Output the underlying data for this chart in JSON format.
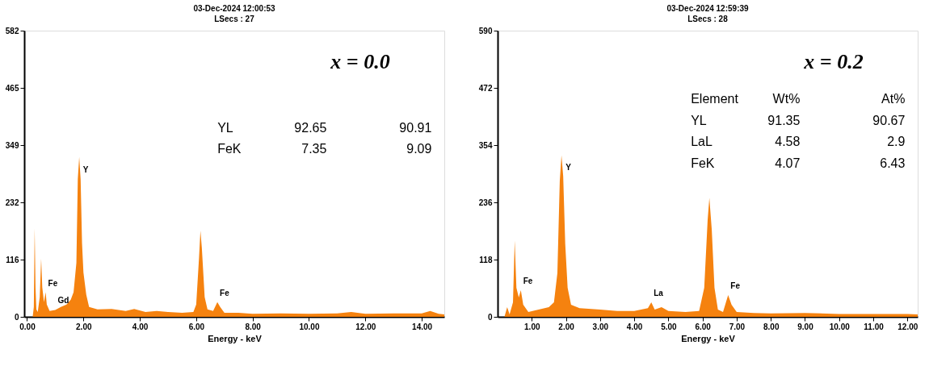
{
  "chart_data": [
    {
      "type": "area",
      "title": "03-Dec-2024 12:00:53",
      "subtitle": "LSecs : 27",
      "xlabel": "Energy - keV",
      "color": "#f5820f",
      "x": [
        0.2,
        0.24,
        0.27,
        0.3,
        0.33,
        0.38,
        0.45,
        0.5,
        0.54,
        0.6,
        0.66,
        0.7,
        0.8,
        1.0,
        1.2,
        1.4,
        1.55,
        1.65,
        1.75,
        1.8,
        1.85,
        1.9,
        1.95,
        2.0,
        2.1,
        2.2,
        2.5,
        3.0,
        3.5,
        3.8,
        4.2,
        4.6,
        5.0,
        5.5,
        5.9,
        6.0,
        6.1,
        6.15,
        6.2,
        6.3,
        6.4,
        6.6,
        6.75,
        6.85,
        7.0,
        7.5,
        8.0,
        9.0,
        10.0,
        11.0,
        11.5,
        12.0,
        13.0,
        14.0,
        14.3,
        14.6,
        14.8
      ],
      "values": [
        0,
        20,
        180,
        60,
        15,
        10,
        40,
        118,
        60,
        30,
        50,
        25,
        12,
        14,
        20,
        25,
        35,
        50,
        110,
        280,
        325,
        280,
        150,
        90,
        45,
        20,
        15,
        16,
        12,
        16,
        10,
        12,
        10,
        8,
        10,
        25,
        120,
        175,
        140,
        40,
        15,
        12,
        30,
        20,
        8,
        8,
        6,
        7,
        6,
        7,
        10,
        6,
        7,
        7,
        12,
        6,
        5
      ],
      "xlim": [
        -0.1,
        14.8
      ],
      "xticks": [
        {
          "value": 0,
          "label": "0.00"
        },
        {
          "value": 2,
          "label": "2.00"
        },
        {
          "value": 4,
          "label": "4.00"
        },
        {
          "value": 6,
          "label": "6.00"
        },
        {
          "value": 8,
          "label": "8.00"
        },
        {
          "value": 10,
          "label": "10.00"
        },
        {
          "value": 12,
          "label": "12.00"
        },
        {
          "value": 14,
          "label": "14.00"
        }
      ],
      "ylim": [
        0,
        582
      ],
      "yticks": [
        0,
        116,
        232,
        349,
        465,
        582
      ],
      "annotations": [
        "x = 0.0",
        "YL",
        "92.65",
        "90.91",
        "FeK",
        "7.35",
        "9.09",
        {
          "text": "Y",
          "x": 1.9,
          "y": 280
        },
        {
          "text": "Fe",
          "x": 0.66,
          "y": 50
        },
        {
          "text": "Gd",
          "x": 1.0,
          "y": 14
        },
        {
          "text": "Fe",
          "x": 6.75,
          "y": 30
        }
      ]
    },
    {
      "type": "area",
      "title": "03-Dec-2024 12:59:39",
      "subtitle": "LSecs : 28",
      "xlabel": "Energy - keV",
      "color": "#f5820f",
      "x": [
        0.2,
        0.28,
        0.35,
        0.45,
        0.5,
        0.55,
        0.62,
        0.68,
        0.75,
        0.9,
        1.2,
        1.5,
        1.65,
        1.75,
        1.82,
        1.87,
        1.92,
        1.98,
        2.05,
        2.15,
        2.4,
        3.0,
        3.5,
        4.0,
        4.4,
        4.5,
        4.6,
        4.8,
        5.0,
        5.5,
        5.9,
        6.05,
        6.15,
        6.2,
        6.27,
        6.35,
        6.45,
        6.6,
        6.75,
        6.85,
        7.0,
        7.5,
        8.0,
        9.0,
        10.0,
        11.0,
        12.0,
        12.3
      ],
      "values": [
        0,
        20,
        5,
        30,
        157,
        60,
        40,
        55,
        25,
        10,
        15,
        20,
        30,
        90,
        280,
        333,
        290,
        150,
        60,
        25,
        18,
        15,
        12,
        12,
        18,
        30,
        15,
        20,
        12,
        10,
        12,
        60,
        200,
        245,
        180,
        60,
        15,
        10,
        45,
        25,
        10,
        8,
        7,
        8,
        6,
        6,
        6,
        5
      ],
      "xlim": [
        0,
        12.3
      ],
      "xticks": [
        {
          "value": 1,
          "label": "1.00"
        },
        {
          "value": 2,
          "label": "2.00"
        },
        {
          "value": 3,
          "label": "3.00"
        },
        {
          "value": 4,
          "label": "4.00"
        },
        {
          "value": 5,
          "label": "5.00"
        },
        {
          "value": 6,
          "label": "6.00"
        },
        {
          "value": 7,
          "label": "7.00"
        },
        {
          "value": 8,
          "label": "8.00"
        },
        {
          "value": 9,
          "label": "9.00"
        },
        {
          "value": 10,
          "label": "10.00"
        },
        {
          "value": 11,
          "label": "11.00"
        },
        {
          "value": 12,
          "label": "12.00"
        }
      ],
      "ylim": [
        0,
        590
      ],
      "yticks": [
        0,
        118,
        236,
        354,
        472,
        590
      ],
      "annotations": [
        "x = 0.2",
        "Element",
        "Wt%",
        "At%",
        "YL",
        "91.35",
        "90.67",
        "LaL",
        "4.58",
        "2.9",
        "FeK",
        "4.07",
        "6.43",
        {
          "text": "Y",
          "x": 1.92,
          "y": 290
        },
        {
          "text": "Fe",
          "x": 0.68,
          "y": 55
        },
        {
          "text": "La",
          "x": 4.5,
          "y": 30
        },
        {
          "text": "Fe",
          "x": 6.75,
          "y": 45
        }
      ]
    }
  ]
}
